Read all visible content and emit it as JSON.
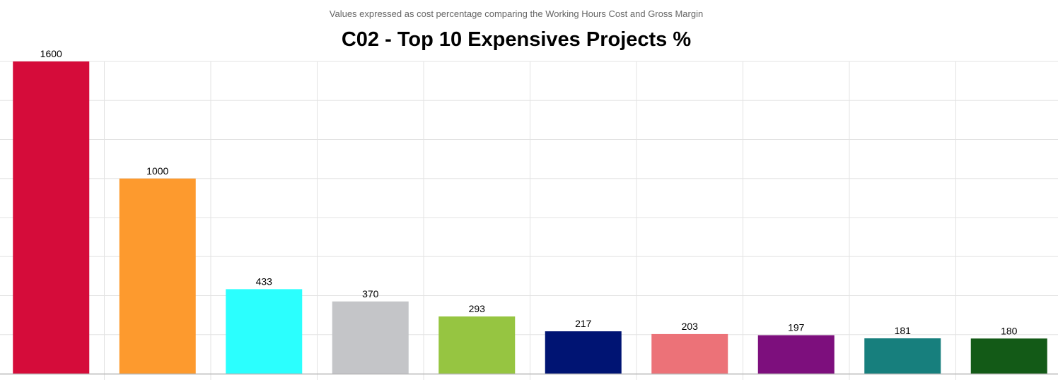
{
  "chart_data": {
    "type": "bar",
    "title": "C02 - Top 10 Expensives Projects %",
    "subtitle": "Values expressed as cost percentage comparing the Working Hours Cost and Gross Margin",
    "xlabel": "",
    "ylabel": "",
    "ylim": [
      0,
      1600
    ],
    "grid": true,
    "legend": "none",
    "values": [
      1600,
      1000,
      433,
      370,
      293,
      217,
      203,
      197,
      181,
      180
    ],
    "data_labels": [
      "1600",
      "1000",
      "433",
      "370",
      "293",
      "217",
      "203",
      "197",
      "181",
      "180"
    ],
    "colors": [
      "#d50c3a",
      "#fd9a2e",
      "#2bfffe",
      "#c4c5c8",
      "#96c541",
      "#001473",
      "#ec7278",
      "#7d0f7d",
      "#177f7d",
      "#135a17"
    ]
  }
}
